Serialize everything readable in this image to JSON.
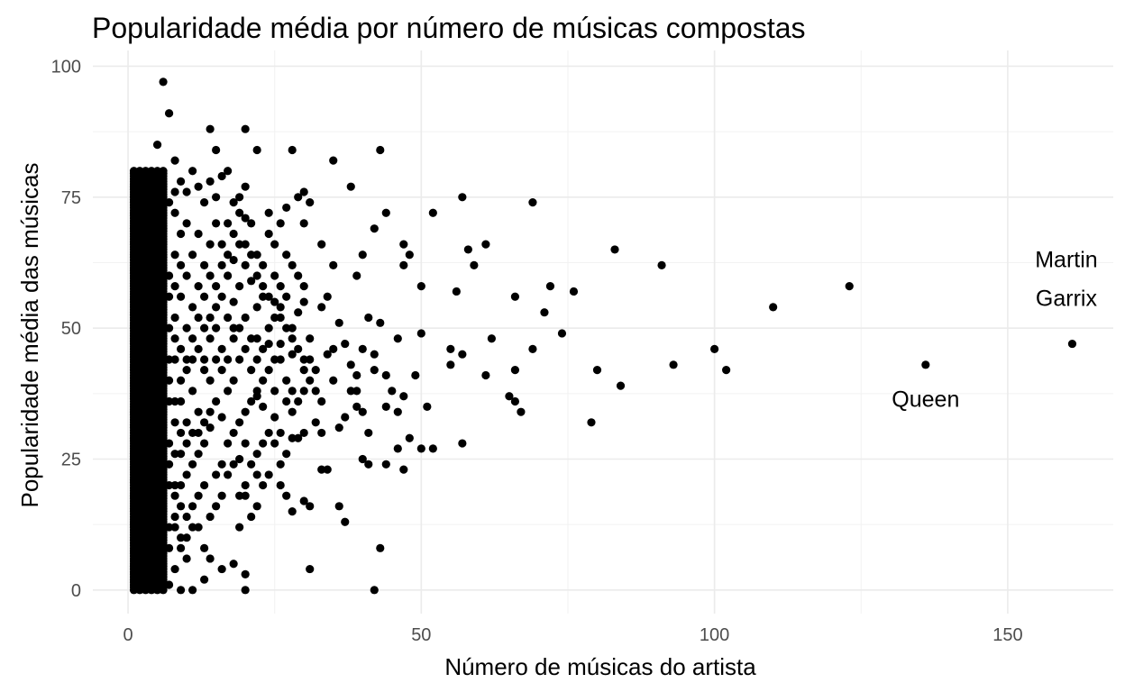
{
  "chart_data": {
    "type": "scatter",
    "title": "Popularidade média por número de músicas compostas",
    "xlabel": "Número de músicas do artista",
    "ylabel": "Popularidade média das músicas",
    "xlim": [
      -6,
      168
    ],
    "ylim": [
      -4.5,
      103
    ],
    "xticks": [
      0,
      50,
      100,
      150
    ],
    "yticks": [
      0,
      25,
      50,
      75,
      100
    ],
    "grid": true,
    "point_color": "#000000",
    "dense_region": {
      "x_range": [
        1,
        6
      ],
      "y_range": [
        0,
        80
      ]
    },
    "points": [
      [
        6,
        97
      ],
      [
        7,
        91
      ],
      [
        14,
        88
      ],
      [
        20,
        88
      ],
      [
        5,
        85
      ],
      [
        15,
        84
      ],
      [
        22,
        84
      ],
      [
        28,
        84
      ],
      [
        43,
        84
      ],
      [
        35,
        82
      ],
      [
        38,
        77
      ],
      [
        20,
        77
      ],
      [
        17,
        80
      ],
      [
        8,
        82
      ],
      [
        30,
        76
      ],
      [
        31,
        74
      ],
      [
        29,
        75
      ],
      [
        27,
        73
      ],
      [
        24,
        72
      ],
      [
        26,
        70
      ],
      [
        30,
        70
      ],
      [
        42,
        69
      ],
      [
        44,
        72
      ],
      [
        52,
        72
      ],
      [
        57,
        75
      ],
      [
        69,
        74
      ],
      [
        83,
        65
      ],
      [
        91,
        62
      ],
      [
        123,
        58
      ],
      [
        110,
        54
      ],
      [
        47,
        66
      ],
      [
        48,
        64
      ],
      [
        47,
        62
      ],
      [
        50,
        58
      ],
      [
        56,
        57
      ],
      [
        58,
        65
      ],
      [
        61,
        66
      ],
      [
        59,
        62
      ],
      [
        40,
        64
      ],
      [
        39,
        60
      ],
      [
        35,
        62
      ],
      [
        33,
        66
      ],
      [
        34,
        56
      ],
      [
        33,
        54
      ],
      [
        36,
        51
      ],
      [
        41,
        52
      ],
      [
        43,
        51
      ],
      [
        46,
        48
      ],
      [
        37,
        47
      ],
      [
        40,
        46
      ],
      [
        42,
        45
      ],
      [
        50,
        49
      ],
      [
        55,
        46
      ],
      [
        57,
        45
      ],
      [
        55,
        43
      ],
      [
        62,
        48
      ],
      [
        66,
        56
      ],
      [
        71,
        53
      ],
      [
        72,
        58
      ],
      [
        76,
        57
      ],
      [
        74,
        49
      ],
      [
        69,
        46
      ],
      [
        80,
        42
      ],
      [
        100,
        46
      ],
      [
        93,
        43
      ],
      [
        102,
        42
      ],
      [
        84,
        39
      ],
      [
        79,
        32
      ],
      [
        136,
        43
      ],
      [
        161,
        47
      ],
      [
        65,
        37
      ],
      [
        66,
        36
      ],
      [
        67,
        34
      ],
      [
        61,
        41
      ],
      [
        66,
        42
      ],
      [
        49,
        41
      ],
      [
        44,
        41
      ],
      [
        45,
        38
      ],
      [
        47,
        37
      ],
      [
        44,
        35
      ],
      [
        46,
        34
      ],
      [
        48,
        29
      ],
      [
        51,
        35
      ],
      [
        50,
        27
      ],
      [
        52,
        27
      ],
      [
        57,
        28
      ],
      [
        46,
        27
      ],
      [
        47,
        23
      ],
      [
        44,
        24
      ],
      [
        40,
        25
      ],
      [
        41,
        24
      ],
      [
        37,
        33
      ],
      [
        36,
        31
      ],
      [
        33,
        30
      ],
      [
        32,
        32
      ],
      [
        30,
        30
      ],
      [
        28,
        29
      ],
      [
        29,
        29
      ],
      [
        28,
        34
      ],
      [
        25,
        33
      ],
      [
        33,
        23
      ],
      [
        34,
        23
      ],
      [
        36,
        16
      ],
      [
        37,
        13
      ],
      [
        30,
        17
      ],
      [
        31,
        16
      ],
      [
        26,
        20
      ],
      [
        27,
        18
      ],
      [
        28,
        15
      ],
      [
        22,
        16
      ],
      [
        21,
        14
      ],
      [
        20,
        18
      ],
      [
        19,
        12
      ],
      [
        31,
        4
      ],
      [
        43,
        8
      ],
      [
        42,
        0
      ],
      [
        20,
        0
      ],
      [
        16,
        4
      ],
      [
        14,
        6
      ],
      [
        13,
        8
      ],
      [
        20,
        3
      ],
      [
        18,
        5
      ],
      [
        38,
        38
      ],
      [
        39,
        35
      ],
      [
        35,
        40
      ],
      [
        30,
        42
      ],
      [
        27,
        40
      ],
      [
        25,
        38
      ],
      [
        22,
        37
      ],
      [
        23,
        35
      ],
      [
        26,
        44
      ],
      [
        28,
        45
      ],
      [
        24,
        47
      ],
      [
        22,
        48
      ],
      [
        31,
        48
      ],
      [
        34,
        45
      ],
      [
        35,
        46
      ],
      [
        38,
        43
      ],
      [
        39,
        41
      ],
      [
        42,
        42
      ],
      [
        39,
        38
      ],
      [
        41,
        30
      ],
      [
        40,
        34
      ],
      [
        19,
        25
      ],
      [
        20,
        28
      ],
      [
        22,
        26
      ],
      [
        17,
        22
      ],
      [
        18,
        24
      ],
      [
        15,
        22
      ],
      [
        13,
        20
      ],
      [
        16,
        18
      ],
      [
        12,
        18
      ],
      [
        11,
        16
      ],
      [
        10,
        14
      ],
      [
        12,
        12
      ],
      [
        9,
        10
      ],
      [
        10,
        6
      ],
      [
        8,
        4
      ],
      [
        9,
        0
      ],
      [
        7,
        1
      ],
      [
        11,
        0
      ],
      [
        13,
        2
      ],
      [
        21,
        59
      ],
      [
        23,
        56
      ],
      [
        25,
        55
      ],
      [
        26,
        52
      ],
      [
        24,
        50
      ],
      [
        22,
        54
      ],
      [
        20,
        52
      ],
      [
        18,
        55
      ],
      [
        19,
        58
      ],
      [
        17,
        60
      ],
      [
        18,
        63
      ],
      [
        16,
        66
      ],
      [
        20,
        66
      ],
      [
        22,
        64
      ],
      [
        23,
        62
      ],
      [
        21,
        70
      ],
      [
        19,
        72
      ],
      [
        17,
        70
      ],
      [
        18,
        74
      ],
      [
        15,
        75
      ],
      [
        13,
        74
      ],
      [
        12,
        77
      ],
      [
        10,
        76
      ],
      [
        9,
        78
      ],
      [
        11,
        80
      ],
      [
        14,
        78
      ],
      [
        16,
        79
      ],
      [
        19,
        75
      ],
      [
        20,
        71
      ],
      [
        24,
        68
      ],
      [
        25,
        66
      ],
      [
        27,
        64
      ],
      [
        28,
        62
      ],
      [
        29,
        60
      ],
      [
        30,
        58
      ],
      [
        26,
        58
      ],
      [
        25,
        60
      ],
      [
        27,
        56
      ],
      [
        29,
        53
      ],
      [
        30,
        55
      ],
      [
        28,
        50
      ],
      [
        26,
        47
      ],
      [
        25,
        44
      ],
      [
        24,
        42
      ],
      [
        21,
        42
      ],
      [
        19,
        44
      ],
      [
        18,
        40
      ],
      [
        17,
        38
      ],
      [
        15,
        36
      ],
      [
        16,
        33
      ],
      [
        14,
        31
      ],
      [
        13,
        28
      ],
      [
        12,
        26
      ],
      [
        11,
        24
      ],
      [
        10,
        22
      ],
      [
        9,
        20
      ],
      [
        8,
        18
      ],
      [
        12,
        34
      ],
      [
        11,
        38
      ],
      [
        10,
        42
      ],
      [
        9,
        46
      ],
      [
        10,
        50
      ],
      [
        11,
        54
      ],
      [
        12,
        58
      ],
      [
        13,
        62
      ],
      [
        14,
        66
      ],
      [
        15,
        70
      ],
      [
        12,
        68
      ],
      [
        11,
        64
      ],
      [
        10,
        60
      ],
      [
        9,
        56
      ],
      [
        8,
        52
      ],
      [
        8,
        48
      ],
      [
        7,
        44
      ],
      [
        7,
        40
      ],
      [
        8,
        36
      ],
      [
        8,
        32
      ],
      [
        7,
        28
      ],
      [
        7,
        24
      ],
      [
        8,
        20
      ],
      [
        9,
        16
      ],
      [
        8,
        12
      ],
      [
        7,
        8
      ],
      [
        9,
        8
      ],
      [
        10,
        10
      ],
      [
        11,
        12
      ],
      [
        14,
        14
      ],
      [
        15,
        16
      ],
      [
        16,
        24
      ],
      [
        17,
        28
      ],
      [
        18,
        30
      ],
      [
        19,
        32
      ],
      [
        20,
        34
      ],
      [
        21,
        36
      ],
      [
        22,
        38
      ],
      [
        23,
        40
      ],
      [
        24,
        30
      ],
      [
        23,
        28
      ],
      [
        25,
        28
      ],
      [
        26,
        30
      ],
      [
        27,
        26
      ],
      [
        26,
        24
      ],
      [
        24,
        22
      ],
      [
        23,
        20
      ],
      [
        22,
        22
      ],
      [
        21,
        24
      ],
      [
        20,
        20
      ],
      [
        19,
        18
      ],
      [
        14,
        48
      ],
      [
        15,
        50
      ],
      [
        16,
        46
      ],
      [
        17,
        44
      ],
      [
        18,
        48
      ],
      [
        19,
        50
      ],
      [
        20,
        46
      ],
      [
        21,
        48
      ],
      [
        22,
        44
      ],
      [
        23,
        46
      ],
      [
        13,
        42
      ],
      [
        14,
        40
      ],
      [
        15,
        44
      ],
      [
        16,
        42
      ],
      [
        17,
        52
      ],
      [
        18,
        50
      ],
      [
        16,
        56
      ],
      [
        15,
        58
      ],
      [
        14,
        60
      ],
      [
        13,
        56
      ],
      [
        12,
        52
      ],
      [
        11,
        48
      ],
      [
        10,
        44
      ],
      [
        9,
        40
      ],
      [
        9,
        36
      ],
      [
        10,
        32
      ],
      [
        11,
        30
      ],
      [
        12,
        30
      ],
      [
        13,
        32
      ],
      [
        14,
        34
      ],
      [
        7,
        60
      ],
      [
        8,
        64
      ],
      [
        9,
        68
      ],
      [
        10,
        70
      ],
      [
        8,
        72
      ],
      [
        7,
        74
      ],
      [
        8,
        76
      ],
      [
        9,
        62
      ],
      [
        7,
        56
      ],
      [
        8,
        58
      ],
      [
        7,
        50
      ],
      [
        8,
        44
      ],
      [
        7,
        36
      ],
      [
        8,
        26
      ],
      [
        7,
        20
      ],
      [
        8,
        14
      ],
      [
        7,
        12
      ],
      [
        9,
        26
      ],
      [
        10,
        28
      ],
      [
        9,
        30
      ],
      [
        13,
        44
      ],
      [
        12,
        46
      ],
      [
        11,
        44
      ],
      [
        13,
        50
      ],
      [
        14,
        52
      ],
      [
        15,
        54
      ],
      [
        16,
        62
      ],
      [
        17,
        64
      ],
      [
        18,
        68
      ],
      [
        19,
        66
      ],
      [
        20,
        62
      ],
      [
        21,
        64
      ],
      [
        22,
        60
      ],
      [
        23,
        58
      ],
      [
        24,
        56
      ],
      [
        25,
        52
      ],
      [
        26,
        54
      ],
      [
        27,
        50
      ],
      [
        28,
        48
      ],
      [
        29,
        46
      ],
      [
        30,
        44
      ],
      [
        31,
        40
      ],
      [
        32,
        38
      ],
      [
        33,
        36
      ],
      [
        32,
        42
      ],
      [
        31,
        44
      ],
      [
        30,
        38
      ],
      [
        29,
        36
      ],
      [
        28,
        38
      ],
      [
        27,
        36
      ]
    ],
    "annotations": [
      {
        "lines": [
          "Martin",
          "Garrix"
        ],
        "x": 160,
        "y": 59.5
      },
      {
        "lines": [
          "Queen"
        ],
        "x": 136,
        "y": 36.5
      }
    ]
  }
}
